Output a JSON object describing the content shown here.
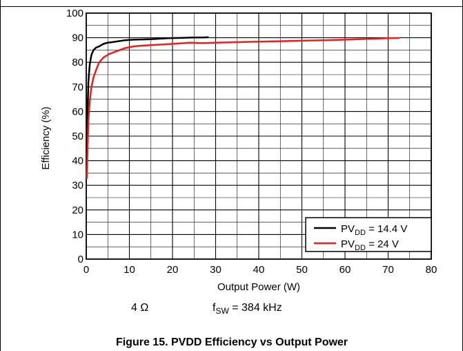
{
  "chart_data": {
    "type": "line",
    "title": "",
    "xlabel": "Output Power (W)",
    "ylabel": "Efficiency (%)",
    "xlim": [
      0,
      80
    ],
    "ylim": [
      0,
      100
    ],
    "xticks": [
      0,
      10,
      20,
      30,
      40,
      50,
      60,
      70,
      80
    ],
    "yticks": [
      0,
      10,
      20,
      30,
      40,
      50,
      60,
      70,
      80,
      90,
      100
    ],
    "grid": true,
    "minor_grid": "x every 5 W, y every 5 %",
    "legend_position": "bottom-right",
    "series": [
      {
        "name": "PV_DD = 14.4 V",
        "name_parts": {
          "main": "PV",
          "sub": "DD",
          "rest": " = 14.4 V"
        },
        "color": "#000000",
        "x": [
          0.1,
          0.3,
          0.5,
          0.8,
          1.2,
          1.7,
          2.3,
          3.0,
          4.0,
          5.0,
          6.0,
          7.5,
          9.0,
          11.0,
          13.0,
          15.0,
          17.0,
          19.0,
          21.0,
          23.0,
          25.0,
          27.0,
          28.2
        ],
        "y": [
          36,
          60,
          72,
          79,
          83,
          85,
          86,
          86.5,
          87.5,
          88,
          88.2,
          88.6,
          89,
          89.2,
          89.3,
          89.4,
          89.6,
          89.8,
          89.9,
          90,
          90.1,
          90.1,
          90.2
        ]
      },
      {
        "name": "PV_DD = 24 V",
        "name_parts": {
          "main": "PV",
          "sub": "DD",
          "rest": " = 24 V"
        },
        "color": "#ee1c1c",
        "x": [
          0.15,
          0.3,
          0.5,
          0.8,
          1.2,
          1.7,
          2.3,
          3.0,
          4.0,
          5.5,
          7.0,
          9.0,
          11.0,
          13.0,
          15.0,
          18.0,
          21.0,
          24.0,
          27.0,
          30.0,
          35.0,
          40.0,
          45.0,
          50.0,
          55.0,
          60.0,
          65.0,
          70.0,
          72.5
        ],
        "y": [
          33,
          45,
          56,
          64,
          70,
          74,
          77,
          80,
          82,
          83.5,
          84.5,
          85.8,
          86.5,
          86.8,
          87,
          87.3,
          87.6,
          88,
          87.8,
          88,
          88.2,
          88.4,
          88.6,
          88.8,
          89,
          89.2,
          89.5,
          89.8,
          89.9
        ]
      }
    ],
    "annotations": {
      "load": "4 Ω",
      "freq_main": "f",
      "freq_sub": "SW",
      "freq_rest": " = 384 kHz"
    },
    "caption": "Figure 15. PVDD Efficiency vs Output Power"
  }
}
